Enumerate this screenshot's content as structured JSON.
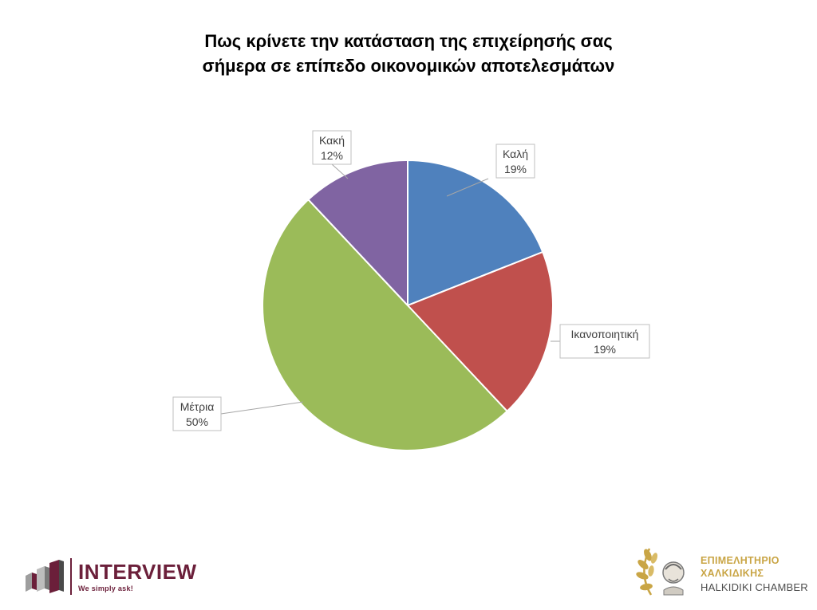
{
  "chart_data": {
    "type": "pie",
    "title_line1": "Πως κρίνετε την κατάσταση της επιχείρησής σας",
    "title_line2": "σήμερα σε επίπεδο οικονομικών αποτελεσμάτων",
    "slices": [
      {
        "label": "Καλή",
        "value": 19,
        "pct_text": "19%",
        "color": "#4f81bd"
      },
      {
        "label": "Ικανοποιητική",
        "value": 19,
        "pct_text": "19%",
        "color": "#c0504d"
      },
      {
        "label": "Μέτρια",
        "value": 50,
        "pct_text": "50%",
        "color": "#9bbb59"
      },
      {
        "label": "Κακή",
        "value": 12,
        "pct_text": "12%",
        "color": "#8064a2"
      }
    ],
    "start": "12 o'clock, clockwise"
  },
  "logos": {
    "interview_word": "INTERVIEW",
    "interview_tag": "We simply ask!",
    "chamber_line1": "ΕΠΙΜΕΛΗΤΗΡΙΟ",
    "chamber_line2": "ΧΑΛΚΙΔΙΚΗΣ",
    "chamber_line3": "HALKIDIKI CHAMBER"
  }
}
